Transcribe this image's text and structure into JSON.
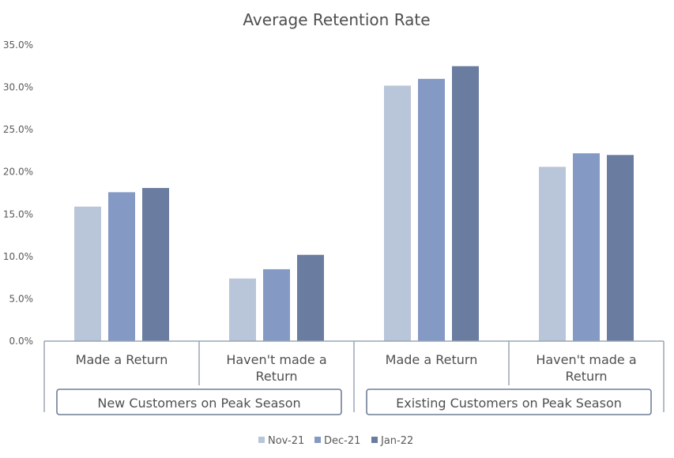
{
  "chart_data": {
    "type": "bar",
    "title": "Average Retention Rate",
    "ylim": [
      0,
      0.35
    ],
    "yticks": [
      0,
      0.05,
      0.1,
      0.15,
      0.2,
      0.25,
      0.3,
      0.35
    ],
    "ytick_labels": [
      "0.0%",
      "5.0%",
      "10.0%",
      "15.0%",
      "20.0%",
      "25.0%",
      "30.0%",
      "35.0%"
    ],
    "categories": [
      {
        "lines": [
          "Made a Return"
        ]
      },
      {
        "lines": [
          "Haven't made a",
          "Return"
        ]
      },
      {
        "lines": [
          "Made a Return"
        ]
      },
      {
        "lines": [
          "Haven't made a",
          "Return"
        ]
      }
    ],
    "groups": [
      {
        "label": "New Customers on Peak Season",
        "span": [
          0,
          1
        ]
      },
      {
        "label": "Existing Customers on Peak Season",
        "span": [
          2,
          3
        ]
      }
    ],
    "series": [
      {
        "name": "Nov-21",
        "color": "#b9c5d9",
        "values": [
          0.159,
          0.074,
          0.302,
          0.206
        ]
      },
      {
        "name": "Dec-21",
        "color": "#8499c4",
        "values": [
          0.176,
          0.085,
          0.31,
          0.222
        ]
      },
      {
        "name": "Jan-22",
        "color": "#6a7ca0",
        "values": [
          0.181,
          0.102,
          0.325,
          0.22
        ]
      }
    ],
    "legend_position": "bottom",
    "grid": false
  }
}
